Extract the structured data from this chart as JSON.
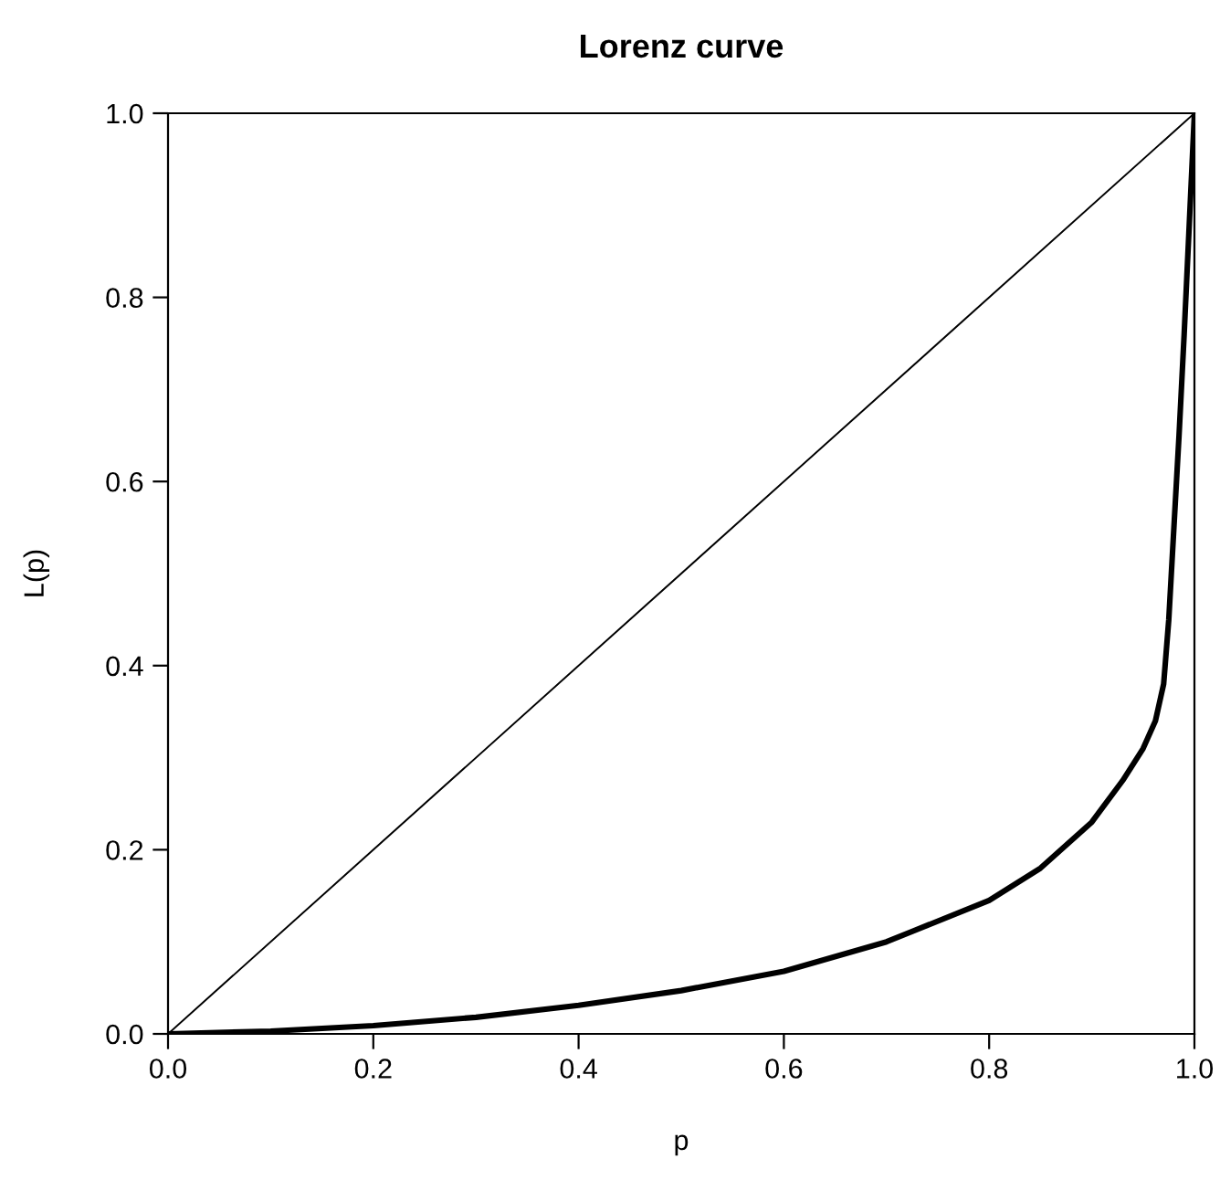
{
  "chart_data": {
    "type": "line",
    "title": "Lorenz curve",
    "xlabel": "p",
    "ylabel": "L(p)",
    "series": [
      {
        "color": "#000000",
        "x": [
          0,
          0.1,
          0.2,
          0.3,
          0.4,
          0.5,
          0.6,
          0.7,
          0.8,
          0.85,
          0.9,
          0.93,
          0.95,
          0.962,
          0.97,
          0.975,
          0.98,
          0.985,
          0.99,
          0.995,
          1.0
        ],
        "values": [
          0,
          0.003,
          0.009,
          0.018,
          0.031,
          0.047,
          0.068,
          0.1,
          0.145,
          0.18,
          0.23,
          0.275,
          0.31,
          0.34,
          0.38,
          0.45,
          0.55,
          0.65,
          0.76,
          0.88,
          1.0
        ]
      },
      {
        "color": "#000000",
        "x": [
          0,
          1
        ],
        "values": [
          0,
          1
        ]
      }
    ],
    "xlim": [
      0,
      1
    ],
    "ylim": [
      0,
      1
    ],
    "xticks": [
      {
        "value": 0,
        "label": "0.0"
      },
      {
        "value": 0.2,
        "label": "0.2"
      },
      {
        "value": 0.4,
        "label": "0.4"
      },
      {
        "value": 0.6,
        "label": "0.6"
      },
      {
        "value": 0.8,
        "label": "0.8"
      },
      {
        "value": 1,
        "label": "1.0"
      }
    ],
    "yticks": [
      {
        "value": 0,
        "label": "0.0"
      },
      {
        "value": 0.2,
        "label": "0.2"
      },
      {
        "value": 0.4,
        "label": "0.4"
      },
      {
        "value": 0.6,
        "label": "0.6"
      },
      {
        "value": 0.8,
        "label": "0.8"
      },
      {
        "value": 1,
        "label": "1.0"
      }
    ],
    "grid": false,
    "legend": false,
    "marker": "none",
    "line_style": "solid"
  }
}
